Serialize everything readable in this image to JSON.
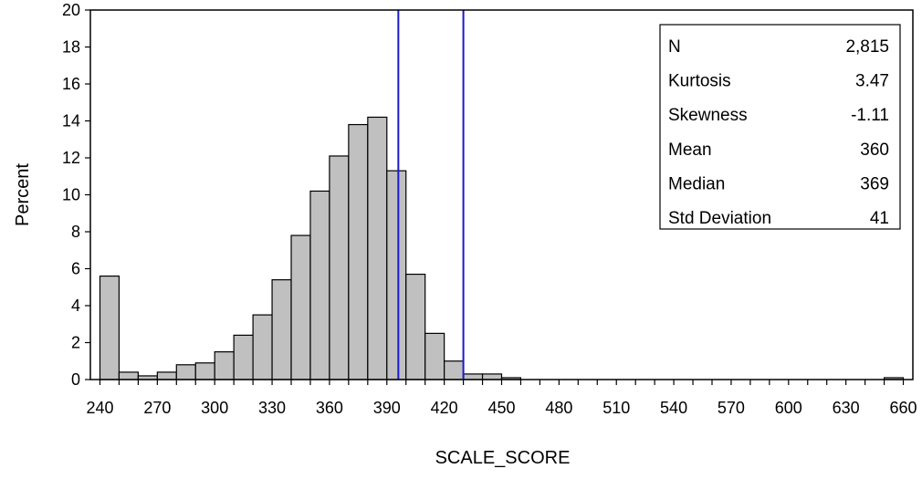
{
  "chart_data": {
    "type": "bar",
    "xlabel": "SCALE_SCORE",
    "ylabel": "Percent",
    "xlim": [
      235,
      665
    ],
    "ylim": [
      0,
      20
    ],
    "bin_width": 10,
    "x_ticks": [
      240,
      270,
      300,
      330,
      360,
      390,
      420,
      450,
      480,
      510,
      540,
      570,
      600,
      630,
      660
    ],
    "y_ticks": [
      0,
      2,
      4,
      6,
      8,
      10,
      12,
      14,
      16,
      18,
      20
    ],
    "bins": [
      {
        "x": 245,
        "value": 5.6
      },
      {
        "x": 255,
        "value": 0.4
      },
      {
        "x": 265,
        "value": 0.2
      },
      {
        "x": 275,
        "value": 0.4
      },
      {
        "x": 285,
        "value": 0.8
      },
      {
        "x": 295,
        "value": 0.9
      },
      {
        "x": 305,
        "value": 1.5
      },
      {
        "x": 315,
        "value": 2.4
      },
      {
        "x": 325,
        "value": 3.5
      },
      {
        "x": 335,
        "value": 5.4
      },
      {
        "x": 345,
        "value": 7.8
      },
      {
        "x": 355,
        "value": 10.2
      },
      {
        "x": 365,
        "value": 12.1
      },
      {
        "x": 375,
        "value": 13.8
      },
      {
        "x": 385,
        "value": 14.2
      },
      {
        "x": 395,
        "value": 11.3
      },
      {
        "x": 405,
        "value": 5.7
      },
      {
        "x": 415,
        "value": 2.5
      },
      {
        "x": 425,
        "value": 1.0
      },
      {
        "x": 435,
        "value": 0.3
      },
      {
        "x": 445,
        "value": 0.3
      },
      {
        "x": 455,
        "value": 0.1
      },
      {
        "x": 655,
        "value": 0.1
      }
    ],
    "reference_lines": [
      {
        "x": 396,
        "color": "#1a1acc"
      },
      {
        "x": 430,
        "color": "#1a1acc"
      }
    ],
    "bar_color": "#c0c0c0",
    "bar_edge_color": "#000000",
    "grid": false,
    "legend_placement": "top-right"
  },
  "stats": {
    "rows": [
      {
        "label": "N",
        "value": "2,815"
      },
      {
        "label": "Kurtosis",
        "value": "3.47"
      },
      {
        "label": "Skewness",
        "value": "-1.11"
      },
      {
        "label": "Mean",
        "value": "360"
      },
      {
        "label": "Median",
        "value": "369"
      },
      {
        "label": "Std Deviation",
        "value": "41"
      }
    ]
  }
}
